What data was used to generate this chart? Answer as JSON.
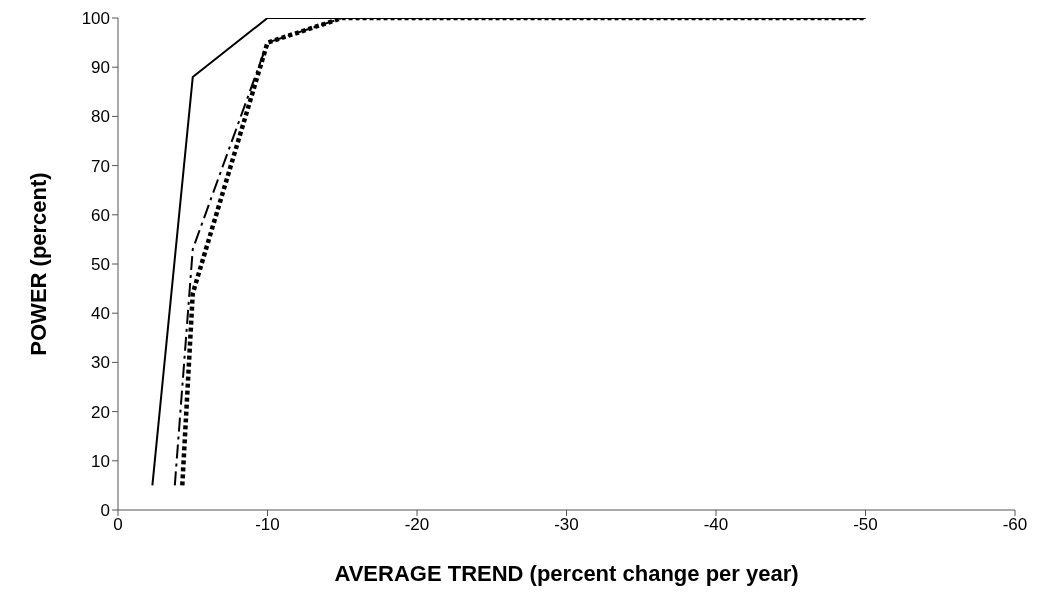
{
  "chart_data": {
    "type": "line",
    "xlabel": "AVERAGE TREND (percent change per year)",
    "ylabel": "POWER (percent)",
    "xlim": [
      0,
      -60
    ],
    "xticks": [
      0,
      -10,
      -20,
      -30,
      -40,
      -50,
      -60
    ],
    "ylim": [
      0,
      100
    ],
    "yticks": [
      0,
      10,
      20,
      30,
      40,
      50,
      60,
      70,
      80,
      90,
      100
    ],
    "grid": false,
    "legend": false,
    "marker": "none",
    "series": [
      {
        "color": "#000000",
        "line_style": "solid",
        "x": [
          -2.3,
          -5,
          -10,
          -50
        ],
        "values": [
          5,
          88,
          100,
          100
        ]
      },
      {
        "color": "#000000",
        "line_style": "dashed",
        "x": [
          -3.8,
          -5,
          -10,
          -15,
          -50
        ],
        "values": [
          5,
          53,
          95,
          100,
          100
        ]
      },
      {
        "color": "#000000",
        "line_style": "dotted",
        "x": [
          -4.3,
          -5,
          -10,
          -15,
          -50
        ],
        "values": [
          5,
          44,
          95,
          100,
          100
        ]
      }
    ]
  }
}
